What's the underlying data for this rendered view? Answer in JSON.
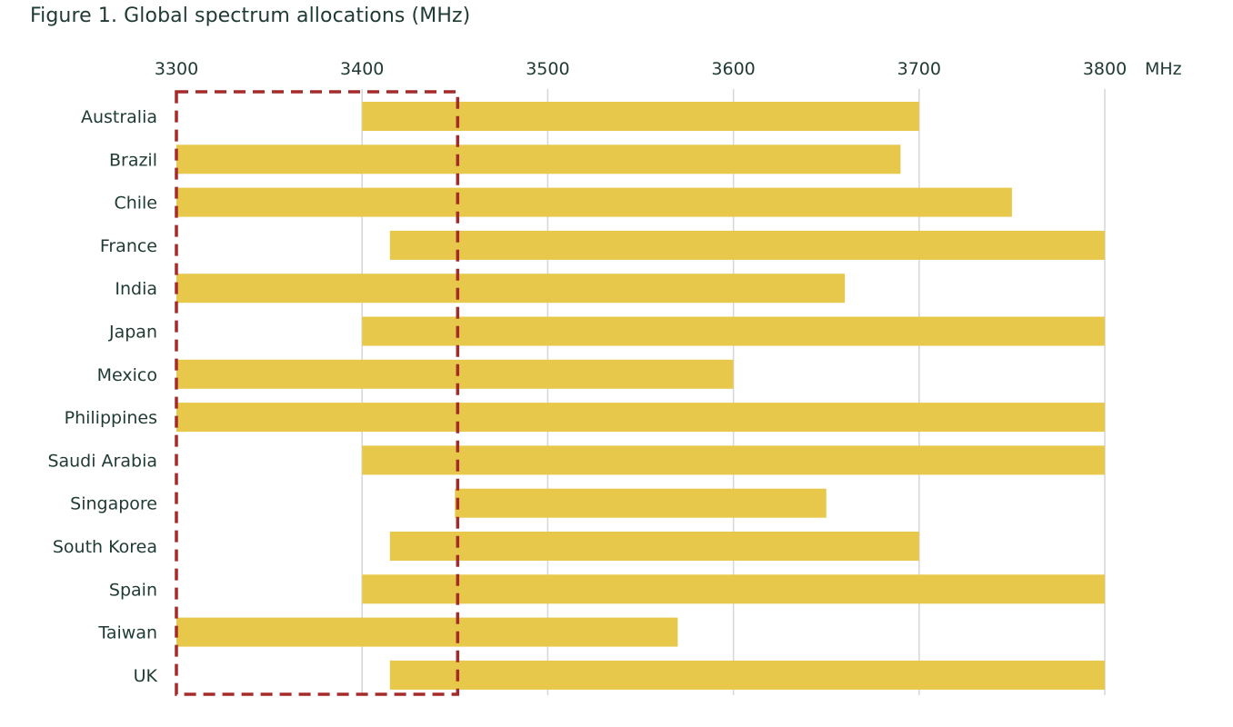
{
  "chart_data": {
    "type": "bar",
    "orientation": "horizontal-range",
    "title": "Figure 1. Global spectrum allocations (MHz)",
    "xunit": "MHz",
    "xlim": [
      3300,
      3800
    ],
    "xticks": [
      3300,
      3400,
      3500,
      3600,
      3700,
      3800
    ],
    "grid": true,
    "bar_color": "#e8c84a",
    "highlight": {
      "x_range": [
        3300,
        3450
      ],
      "color": "#a52a2a",
      "style": "dashed"
    },
    "categories": [
      "Australia",
      "Brazil",
      "Chile",
      "France",
      "India",
      "Japan",
      "Mexico",
      "Philippines",
      "Saudi Arabia",
      "Singapore",
      "South Korea",
      "Spain",
      "Taiwan",
      "UK"
    ],
    "ranges": [
      [
        3400,
        3700
      ],
      [
        3300,
        3690
      ],
      [
        3300,
        3750
      ],
      [
        3415,
        3800
      ],
      [
        3300,
        3660
      ],
      [
        3400,
        3800
      ],
      [
        3300,
        3600
      ],
      [
        3300,
        3800
      ],
      [
        3400,
        3800
      ],
      [
        3450,
        3650
      ],
      [
        3415,
        3700
      ],
      [
        3400,
        3800
      ],
      [
        3300,
        3570
      ],
      [
        3415,
        3800
      ]
    ]
  }
}
